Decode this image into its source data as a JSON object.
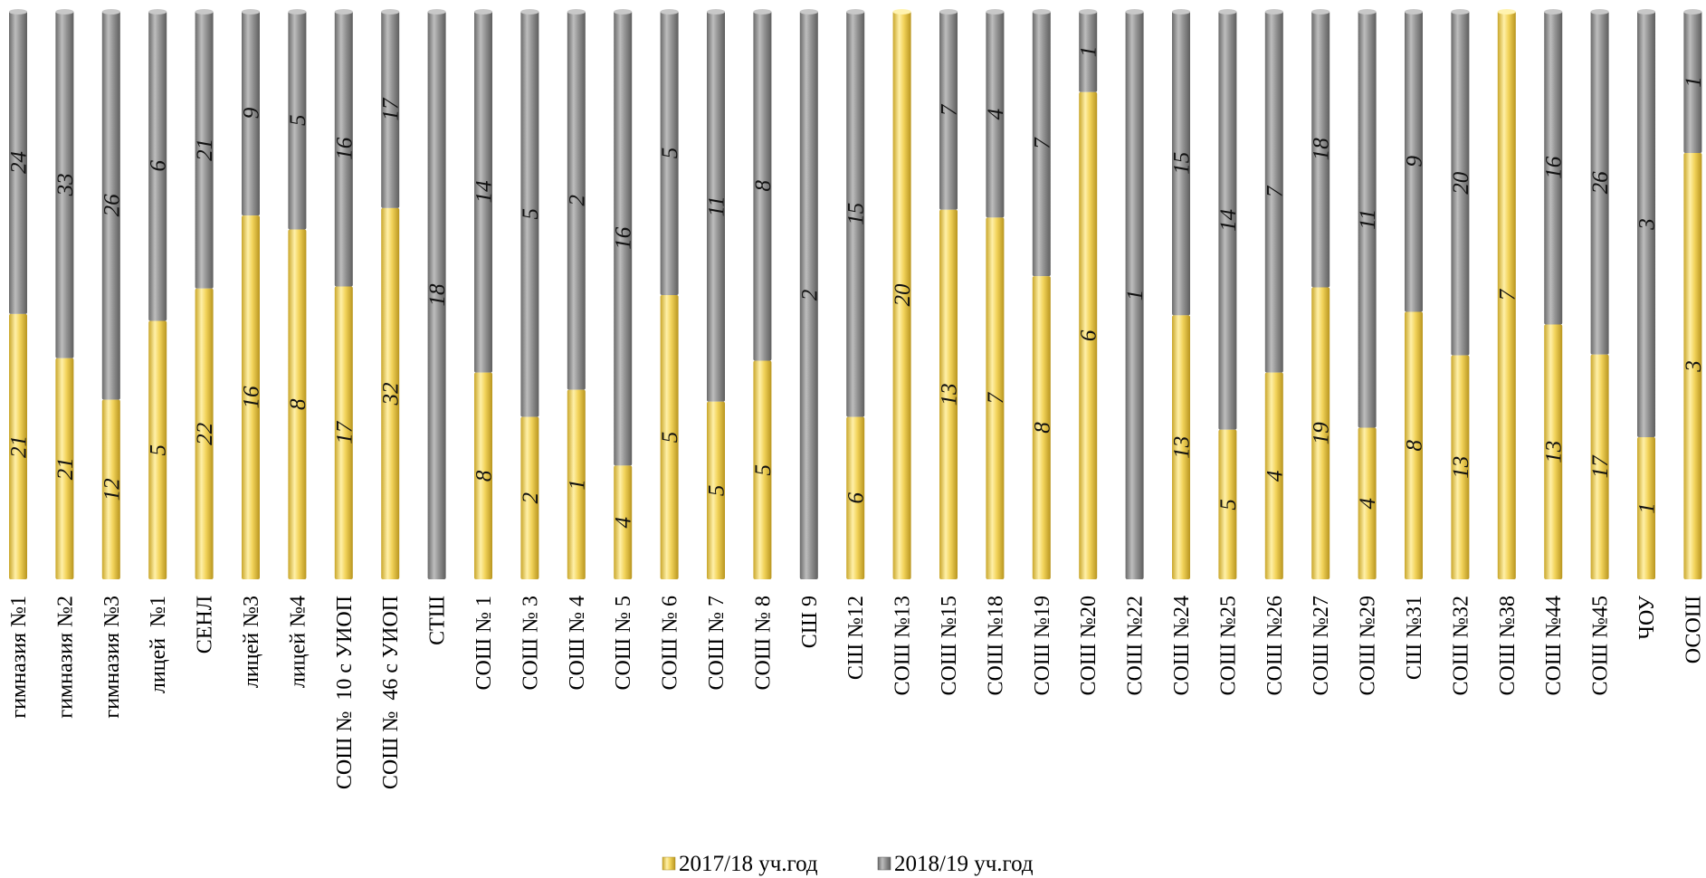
{
  "chart_data": {
    "type": "bar",
    "stacked": true,
    "normalized_100_percent": true,
    "orientation": "vertical",
    "categories": [
      "гимназия №1",
      "гимназия №2",
      "гимназия №3",
      "лицей  №1",
      "СЕНЛ",
      "лицей №3",
      "лицей №4",
      "СОШ №  10 с УИОП",
      "СОШ №  46 с УИОП",
      "СТШ",
      "СОШ № 1",
      "СОШ № 3",
      "СОШ № 4",
      "СОШ № 5",
      "СОШ № 6",
      "СОШ № 7",
      "СОШ № 8",
      "СШ 9",
      "СШ №12",
      "СОШ №13",
      "СОШ №15",
      "СОШ №18",
      "СОШ №19",
      "СОШ №20",
      "СОШ №22",
      "СОШ №24",
      "СОШ №25",
      "СОШ №26",
      "СОШ №27",
      "СОШ №29",
      "СШ №31",
      "СОШ №32",
      "СОШ №38",
      "СОШ №44",
      "СОШ №45",
      "ЧОУ",
      "ОСОШ"
    ],
    "series": [
      {
        "name": "2017/18 уч.год",
        "color": "#e8c84a",
        "values": [
          21,
          21,
          12,
          5,
          22,
          16,
          8,
          17,
          32,
          0,
          8,
          2,
          1,
          4,
          5,
          5,
          5,
          0,
          6,
          20,
          13,
          7,
          8,
          6,
          0,
          13,
          5,
          4,
          19,
          4,
          8,
          13,
          7,
          13,
          17,
          1,
          3
        ]
      },
      {
        "name": "2018/19 уч.год",
        "color": "#8c8c8c",
        "values": [
          24,
          33,
          26,
          6,
          21,
          9,
          5,
          16,
          17,
          18,
          14,
          5,
          2,
          16,
          5,
          11,
          8,
          2,
          15,
          0,
          7,
          4,
          7,
          1,
          1,
          15,
          14,
          7,
          18,
          11,
          9,
          20,
          0,
          16,
          26,
          3,
          1
        ]
      }
    ],
    "legend": {
      "position": "bottom-center"
    },
    "grid": false
  }
}
